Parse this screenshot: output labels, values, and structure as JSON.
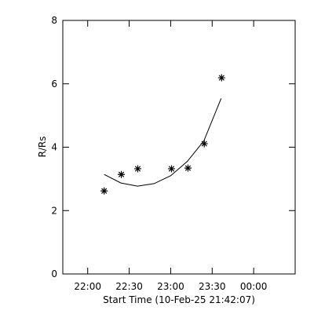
{
  "chart_data": {
    "type": "scatter",
    "x_label": "Start Time (10-Feb-25 21:42:07)",
    "y_label": "R/Rs",
    "xlim": [
      -18,
      150
    ],
    "ylim": [
      0,
      8
    ],
    "xticks": [
      {
        "value": 0,
        "label": "22:00"
      },
      {
        "value": 30,
        "label": "22:30"
      },
      {
        "value": 60,
        "label": "23:00"
      },
      {
        "value": 90,
        "label": "23:30"
      },
      {
        "value": 120,
        "label": "00:00"
      }
    ],
    "yticks": [
      0,
      2,
      4,
      6,
      8
    ],
    "color": "#000000",
    "x": [
      11.9,
      24.3,
      36.2,
      60.6,
      72.5,
      84.3,
      96.8
    ],
    "values": [
      2.62,
      3.14,
      3.32,
      3.32,
      3.34,
      4.11,
      6.19
    ],
    "fit": {
      "x": [
        11.9,
        24,
        36,
        48,
        60,
        72,
        84,
        96.5
      ],
      "values": [
        3.14,
        2.87,
        2.77,
        2.85,
        3.1,
        3.55,
        4.2,
        5.54
      ]
    }
  }
}
